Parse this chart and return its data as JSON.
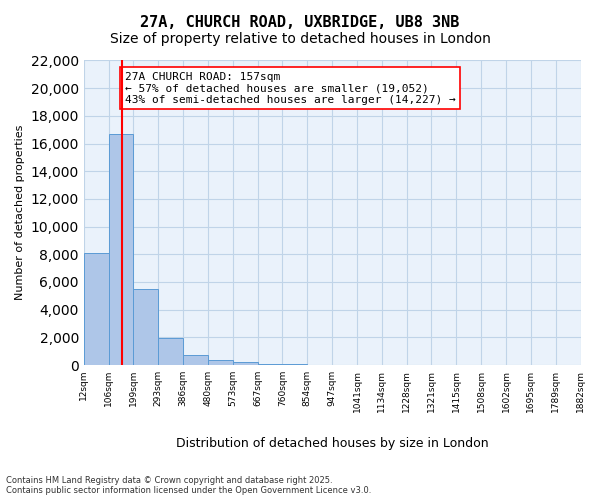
{
  "title_line1": "27A, CHURCH ROAD, UXBRIDGE, UB8 3NB",
  "title_line2": "Size of property relative to detached houses in London",
  "xlabel": "Distribution of detached houses by size in London",
  "ylabel": "Number of detached properties",
  "annotation_line1": "27A CHURCH ROAD: 157sqm",
  "annotation_line2": "← 57% of detached houses are smaller (19,052)",
  "annotation_line3": "43% of semi-detached houses are larger (14,227) →",
  "footer_line1": "Contains HM Land Registry data © Crown copyright and database right 2025.",
  "footer_line2": "Contains public sector information licensed under the Open Government Licence v3.0.",
  "bin_labels": [
    "12sqm",
    "106sqm",
    "199sqm",
    "293sqm",
    "386sqm",
    "480sqm",
    "573sqm",
    "667sqm",
    "760sqm",
    "854sqm",
    "947sqm",
    "1041sqm",
    "1134sqm",
    "1228sqm",
    "1321sqm",
    "1415sqm",
    "1508sqm",
    "1602sqm",
    "1695sqm",
    "1789sqm",
    "1882sqm"
  ],
  "bar_values": [
    8100,
    16700,
    5500,
    1950,
    700,
    380,
    200,
    90,
    50,
    30,
    20,
    15,
    10,
    8,
    6,
    5,
    4,
    3,
    3,
    2
  ],
  "bar_color": "#aec6e8",
  "bar_edge_color": "#5b9bd5",
  "vline_color": "red",
  "vline_lw": 1.5,
  "ylim": [
    0,
    22000
  ],
  "yticks": [
    0,
    2000,
    4000,
    6000,
    8000,
    10000,
    12000,
    14000,
    16000,
    18000,
    20000,
    22000
  ],
  "grid_color": "#c0d4e8",
  "bg_color": "#eaf2fb",
  "title_fontsize": 11,
  "subtitle_fontsize": 10,
  "annotation_fontsize": 8
}
